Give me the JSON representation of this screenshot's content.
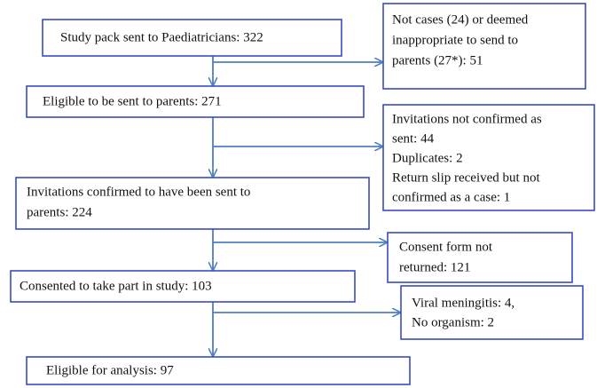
{
  "steps": [
    {
      "lines": [
        "Study pack sent to Paediatricians: 322"
      ]
    },
    {
      "lines": [
        "Eligible to be sent to parents: 271"
      ]
    },
    {
      "lines": [
        "Invitations confirmed to have been sent to",
        "parents: 224"
      ]
    },
    {
      "lines": [
        "Consented to take part in study: 103"
      ]
    },
    {
      "lines": [
        "Eligible for analysis: 97"
      ]
    }
  ],
  "exclusions": [
    {
      "lines": [
        "Not cases (24) or deemed",
        "inappropriate to send to",
        "parents (27*): 51"
      ]
    },
    {
      "lines": [
        "Invitations not confirmed as",
        "sent: 44",
        "Duplicates: 2",
        "Return slip received but not",
        "confirmed as a case: 1"
      ]
    },
    {
      "lines": [
        "Consent form not",
        "returned: 121"
      ]
    },
    {
      "lines": [
        "Viral meningitis: 4,",
        "No organism: 2"
      ]
    }
  ]
}
